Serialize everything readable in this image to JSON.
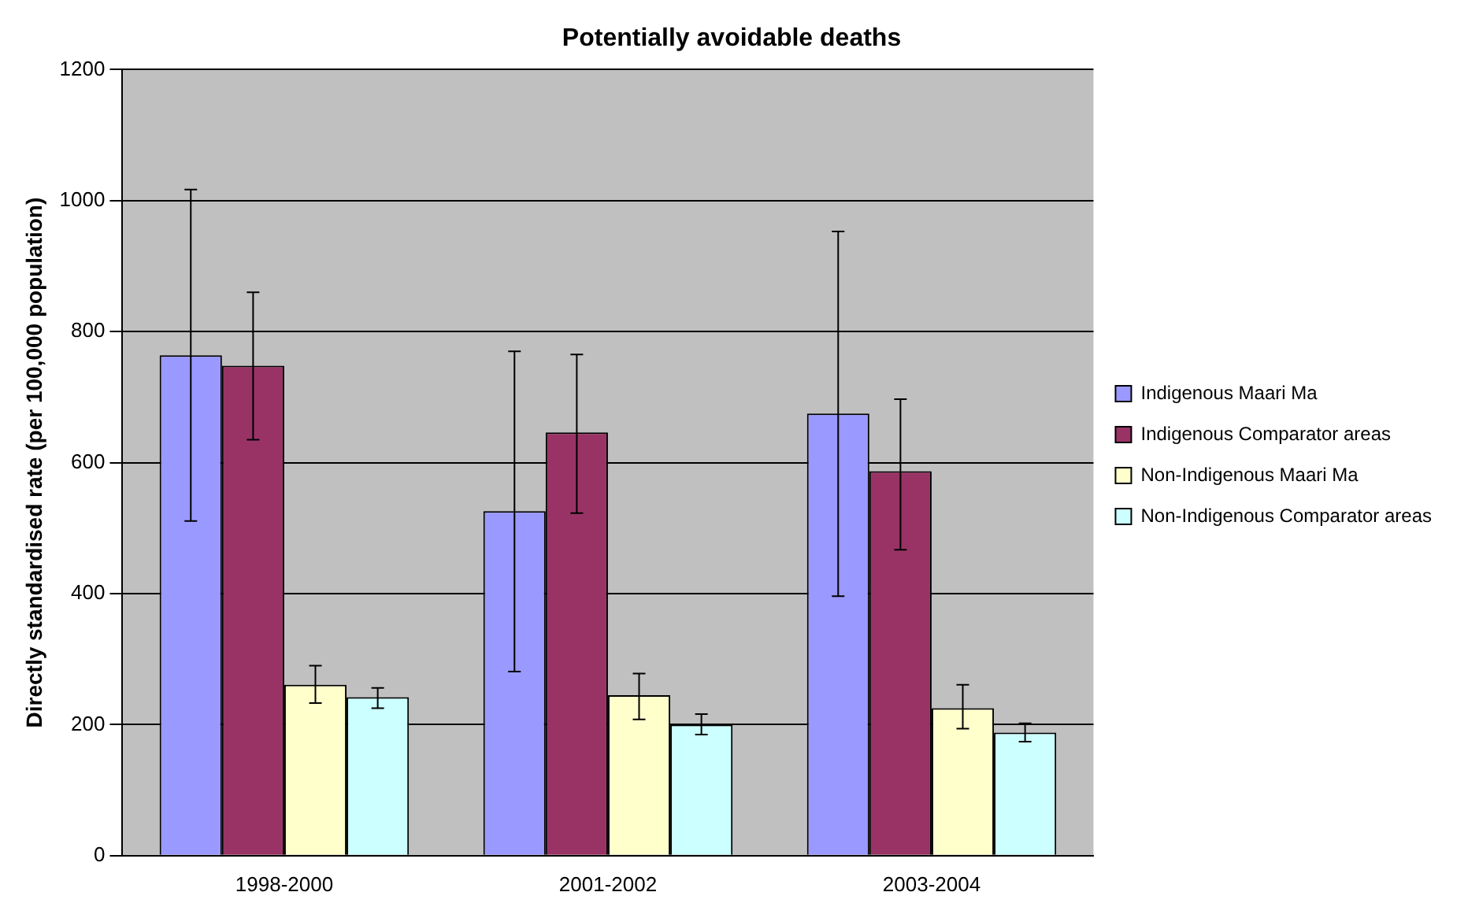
{
  "chart_data": {
    "type": "bar",
    "title": "Potentially avoidable deaths",
    "ylabel": "Directly standardised rate (per 100,000 population)",
    "categories": [
      "1998-2000",
      "2001-2002",
      "2003-2004"
    ],
    "series": [
      {
        "name": "Indigenous Maari Ma",
        "color": "#9999ff",
        "values": [
          764,
          526,
          675
        ],
        "errors": [
          [
            511,
            1017
          ],
          [
            281,
            770
          ],
          [
            396,
            953
          ]
        ]
      },
      {
        "name": "Indigenous Comparator areas",
        "color": "#993366",
        "values": [
          748,
          646,
          587
        ],
        "errors": [
          [
            635,
            860
          ],
          [
            523,
            765
          ],
          [
            467,
            697
          ]
        ]
      },
      {
        "name": "Non-Indigenous Maari Ma",
        "color": "#ffffcc",
        "values": [
          261,
          245,
          225
        ],
        "errors": [
          [
            233,
            290
          ],
          [
            208,
            278
          ],
          [
            194,
            261
          ]
        ]
      },
      {
        "name": "Non-Indigenous Comparator areas",
        "color": "#ccffff",
        "values": [
          242,
          200,
          188
        ],
        "errors": [
          [
            225,
            256
          ],
          [
            185,
            216
          ],
          [
            174,
            202
          ]
        ]
      }
    ],
    "ylim": [
      0,
      1200
    ],
    "yticks": [
      0,
      200,
      400,
      600,
      800,
      1000,
      1200
    ],
    "grid": "y",
    "legend": "right"
  }
}
